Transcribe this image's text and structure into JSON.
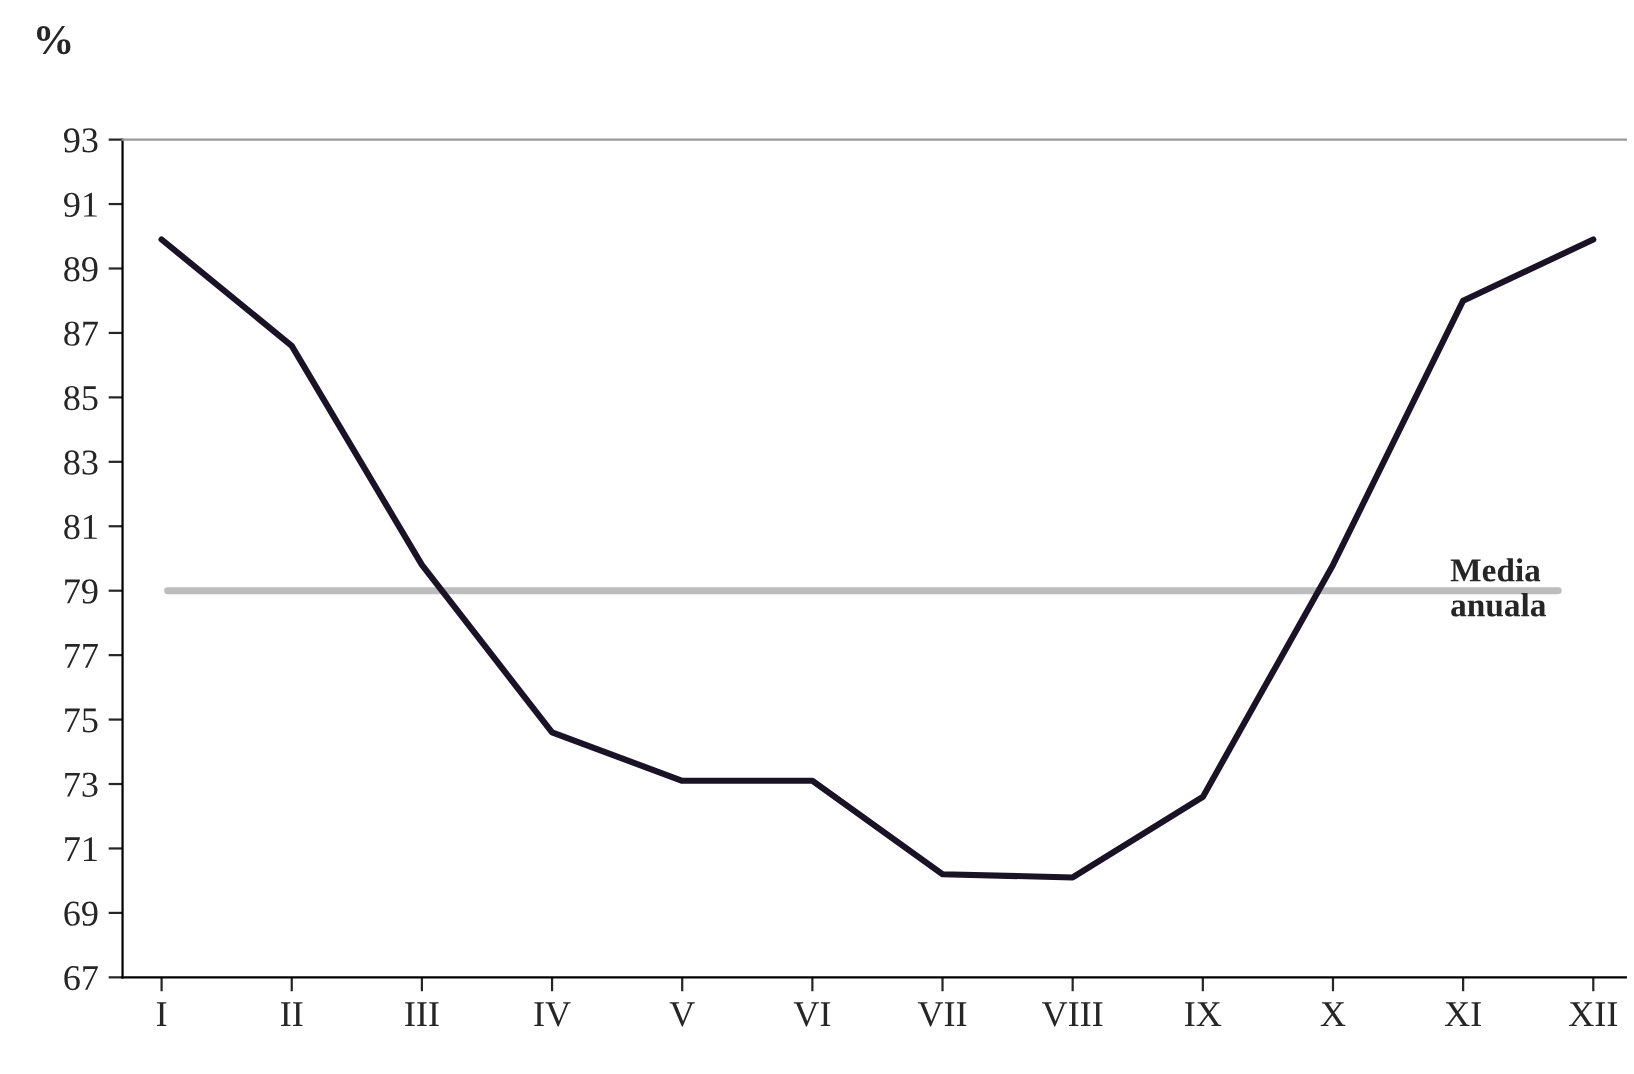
{
  "chart_data": {
    "type": "line",
    "ylabel": "%",
    "categories": [
      "I",
      "II",
      "III",
      "IV",
      "V",
      "VI",
      "VII",
      "VIII",
      "IX",
      "X",
      "XI",
      "XII"
    ],
    "series": [
      {
        "color": "#1a1326",
        "values": [
          89.9,
          86.6,
          79.8,
          74.6,
          73.1,
          73.1,
          70.2,
          70.1,
          72.6,
          79.8,
          88.0,
          89.9
        ]
      }
    ],
    "ylim": [
      67,
      93
    ],
    "yticks": [
      67,
      69,
      71,
      73,
      75,
      77,
      79,
      81,
      83,
      85,
      87,
      89,
      91,
      93
    ],
    "ref_lines": [
      {
        "axis": "y",
        "value": 79,
        "label": "Media\nanuala",
        "color": "#bdbdbd"
      }
    ],
    "grid": false,
    "legend": false,
    "line_style": "solid",
    "marker": "none"
  }
}
